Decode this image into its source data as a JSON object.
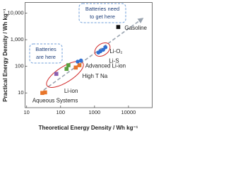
{
  "chart_data": {
    "type": "scatter",
    "xlabel": "Theoretical Energy Density / Wh kg⁻¹",
    "ylabel": "Practical Energy Density / Wh kg⁻¹",
    "log_x": true,
    "log_y": true,
    "xlim": [
      9,
      50000
    ],
    "ylim": [
      2.8,
      25000
    ],
    "xticks": [
      10,
      100,
      1000,
      10000
    ],
    "yticks": [
      10,
      100,
      {
        "value": 1000,
        "label": "1,000"
      },
      {
        "value": 10000,
        "label": "10,000"
      }
    ],
    "series": [
      {
        "name": "Gasoline",
        "color": "#111111",
        "marker": "square",
        "x": [
          5000
        ],
        "values": [
          3000
        ]
      },
      {
        "name": "Li-O₂",
        "color": "#2f6fd1",
        "marker": "circle",
        "x": [
          1800,
          2100
        ],
        "values": [
          420,
          520
        ]
      },
      {
        "name": "Li-S",
        "color": "#2f6fd1",
        "marker": "circle",
        "x": [
          1300,
          1500
        ],
        "values": [
          330,
          370
        ]
      },
      {
        "name": "Advanced Li-ion",
        "color": "#2f6fd1",
        "marker": "circle",
        "x": [
          320,
          400
        ],
        "values": [
          150,
          165
        ]
      },
      {
        "name": "High T Na",
        "color": "#e8752a",
        "marker": "square",
        "x": [
          280,
          360
        ],
        "values": [
          90,
          110
        ]
      },
      {
        "name": "Li-ion",
        "color": "#5a9f3e",
        "marker": "square",
        "x": [
          150,
          170
        ],
        "values": [
          80,
          110
        ]
      },
      {
        "color": "#8a5fb0",
        "marker": "square",
        "x": [
          75
        ],
        "values": [
          52
        ]
      },
      {
        "name": "Aqueous Systems",
        "color": "#e8752a",
        "marker": "square",
        "x": [
          29,
          35
        ],
        "values": [
          10,
          10.5
        ]
      }
    ],
    "annotations": [
      [
        "Batteries need",
        "to get here"
      ],
      [
        "Batteries",
        "are here"
      ]
    ]
  }
}
